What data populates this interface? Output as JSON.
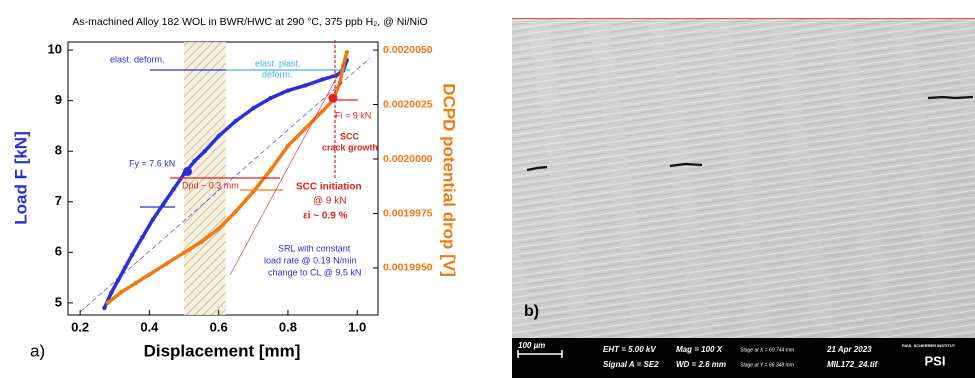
{
  "chart_data": {
    "type": "scatter",
    "title": "As-machined Alloy 182 WOL in BWR/HWC at 290 °C, 375 ppb H₂, @ Ni/NiO",
    "xlabel": "Displacement   [mm]",
    "ylabel": "Load F   [kN]",
    "y2label": "DCPD potential drop   [V]",
    "xlim": [
      0.165,
      1.06
    ],
    "ylim": [
      4.76,
      10.16
    ],
    "y2lim": [
      0.00199284,
      0.00200537
    ],
    "xticks": [
      0.2,
      0.4,
      0.6,
      0.8,
      {
        "value": 1,
        "label": "1.0"
      }
    ],
    "yticks": [
      5,
      6,
      7,
      8,
      9,
      10
    ],
    "y2ticks": [
      {
        "value": 0.001995,
        "label": "0.0019950"
      },
      {
        "value": 0.0019975,
        "label": "0.0019975"
      },
      {
        "value": 0.002,
        "label": "0.0020000"
      },
      {
        "value": 0.0020025,
        "label": "0.0020025"
      },
      {
        "value": 0.002005,
        "label": "0.0020050"
      }
    ],
    "hatch_region": [
      0.5,
      0.62
    ],
    "series": [
      {
        "color": "#2b2fd6",
        "x": [
          0.27,
          0.29,
          0.31,
          0.33,
          0.35,
          0.38,
          0.41,
          0.44,
          0.47,
          0.5,
          0.53,
          0.56,
          0.6,
          0.65,
          0.7,
          0.75,
          0.8,
          0.85,
          0.9,
          0.94,
          0.96,
          0.97
        ],
        "values": [
          4.9,
          5.2,
          5.45,
          5.7,
          5.95,
          6.3,
          6.65,
          6.95,
          7.25,
          7.55,
          7.8,
          8.0,
          8.3,
          8.6,
          8.85,
          9.05,
          9.2,
          9.3,
          9.42,
          9.5,
          9.6,
          9.8
        ]
      },
      {
        "color": "#f07a10",
        "axis": "y2",
        "x": [
          0.28,
          0.32,
          0.36,
          0.4,
          0.45,
          0.5,
          0.55,
          0.6,
          0.65,
          0.7,
          0.75,
          0.8,
          0.85,
          0.9,
          0.93,
          0.95,
          0.96,
          0.97
        ],
        "values": [
          0.0019934,
          0.0019939,
          0.0019943,
          0.0019947,
          0.0019952,
          0.0019957,
          0.0019962,
          0.0019968,
          0.0019976,
          0.0019985,
          0.0019995,
          0.0020006,
          0.0020014,
          0.0020022,
          0.0020027,
          0.0020035,
          0.0020043,
          0.0020049
        ]
      }
    ],
    "markers": [
      {
        "x": 0.51,
        "y": 7.6,
        "color": "#2b2fd6"
      },
      {
        "x": 0.93,
        "y": 9.05,
        "color": "#e0201b"
      }
    ],
    "annotations": {
      "elast": "elast. deform.",
      "elast_plast": "elast. plast.",
      "elast_plast2": "deform.",
      "fy": "Fy = 7.6 kN",
      "dpd": "Dpd ~ 0.3 mm",
      "fi": "Fi = 9 kN",
      "crack1": "SCC",
      "crack2": "crack growth",
      "init1": "SCC initiation",
      "init2": "@ 9 kN",
      "init3": "εi ~ 0.9 %",
      "srl1": "SRL with constant",
      "srl2": "load rate @ 0.19 N/min",
      "srl3": "change to CL @ 9.5 kN",
      "panel": "a)"
    }
  },
  "image": {
    "panel": "b)",
    "scale": "100 µm",
    "eht": "EHT =  5.00 kV",
    "signal": "Signal A = SE2",
    "mag": "Mag =   100 X",
    "wd": "WD =  2.6 mm",
    "stage_x": "Stage at X = 69.744 mm",
    "stage_y": "Stage at Y = 66.348 mm",
    "date": "21 Apr 2023",
    "file": "MIL172_24.tif",
    "inst": "PAUL SCHERRER INSTITUT",
    "logo": "PSI"
  }
}
